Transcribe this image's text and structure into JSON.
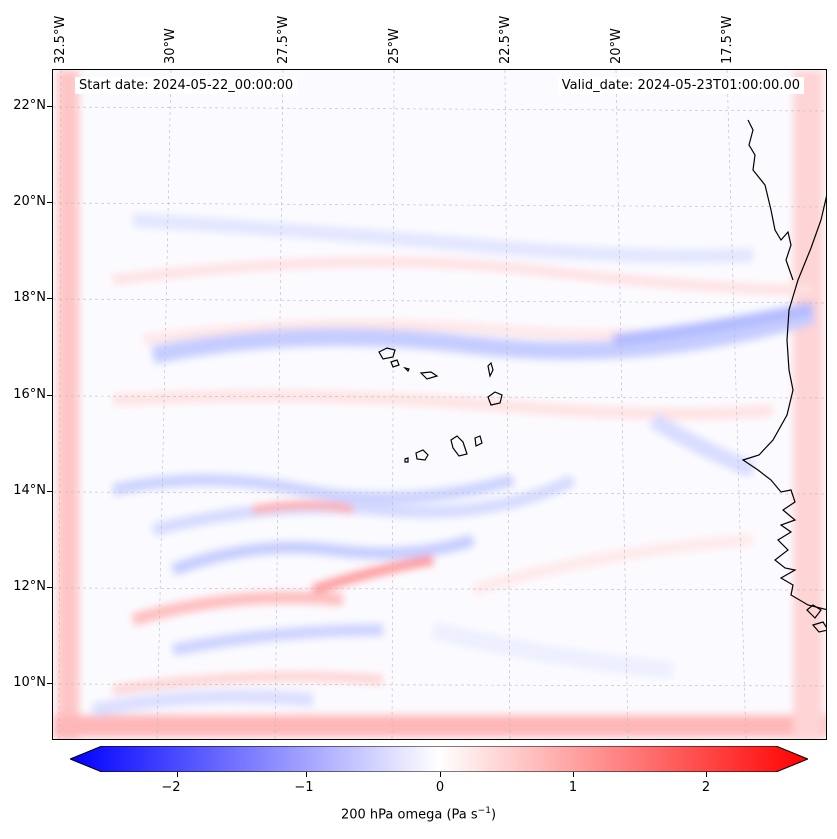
{
  "map": {
    "start_date": "Start date: 2024-05-22_00:00:00",
    "valid_date": "Valid_date: 2024-05-23T01:00:00.00",
    "longitude_labels": [
      "32.5°W",
      "30°W",
      "27.5°W",
      "25°W",
      "22.5°W",
      "20°W",
      "17.5°W"
    ],
    "latitude_labels": [
      "22°N",
      "20°N",
      "18°N",
      "16°N",
      "14°N",
      "12°N",
      "10°N"
    ],
    "regions": [
      "Cabo Verde islands",
      "West African coast"
    ],
    "colors": {
      "negative": "#0000ff",
      "neutral": "#ffffff",
      "positive": "#ff0000",
      "coast": "#000000"
    }
  },
  "colorbar": {
    "label": "200 hPa omega (Pa s",
    "label_sup": "−1",
    "label_end": ")",
    "ticks": [
      "−2",
      "−1",
      "0",
      "1",
      "2"
    ],
    "range": [
      -2.75,
      2.75
    ]
  }
}
